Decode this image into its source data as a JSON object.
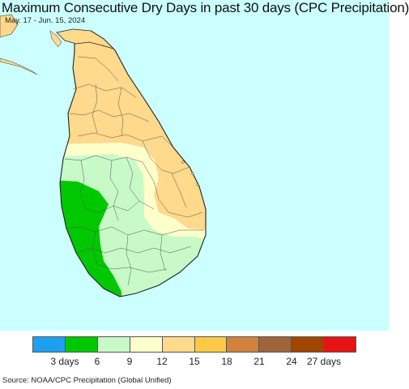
{
  "title": "Maximum Consecutive Dry Days in past 30 days (CPC Precipitation)",
  "subtitle": "May. 17 - Jun. 15, 2024",
  "source": "Source: NOAA/CPC Precipitation (Global Unified)",
  "colors": {
    "ocean": "#ccffff",
    "land_outline": "#333333",
    "district_lines": "#555555",
    "india_coast": "#ffd88a"
  },
  "legend": {
    "swatches": [
      "#1ea0f0",
      "#00c800",
      "#c8fac8",
      "#ffffcc",
      "#ffd98c",
      "#ffc846",
      "#d2823c",
      "#a0643c",
      "#a04600",
      "#e61414"
    ],
    "labels": [
      {
        "text": "3 days",
        "index": 1
      },
      {
        "text": "6",
        "index": 2
      },
      {
        "text": "9",
        "index": 3
      },
      {
        "text": "12",
        "index": 4
      },
      {
        "text": "15",
        "index": 5
      },
      {
        "text": "18",
        "index": 6
      },
      {
        "text": "21",
        "index": 7
      },
      {
        "text": "24",
        "index": 8
      },
      {
        "text": "27 days",
        "index": 9
      }
    ]
  },
  "zones": [
    {
      "name": "north-dry-15",
      "color": "#ffd98c"
    },
    {
      "name": "central-12",
      "color": "#ffffcc"
    },
    {
      "name": "central-9",
      "color": "#c8fac8"
    },
    {
      "name": "southwest-6",
      "color": "#00c800"
    }
  ]
}
